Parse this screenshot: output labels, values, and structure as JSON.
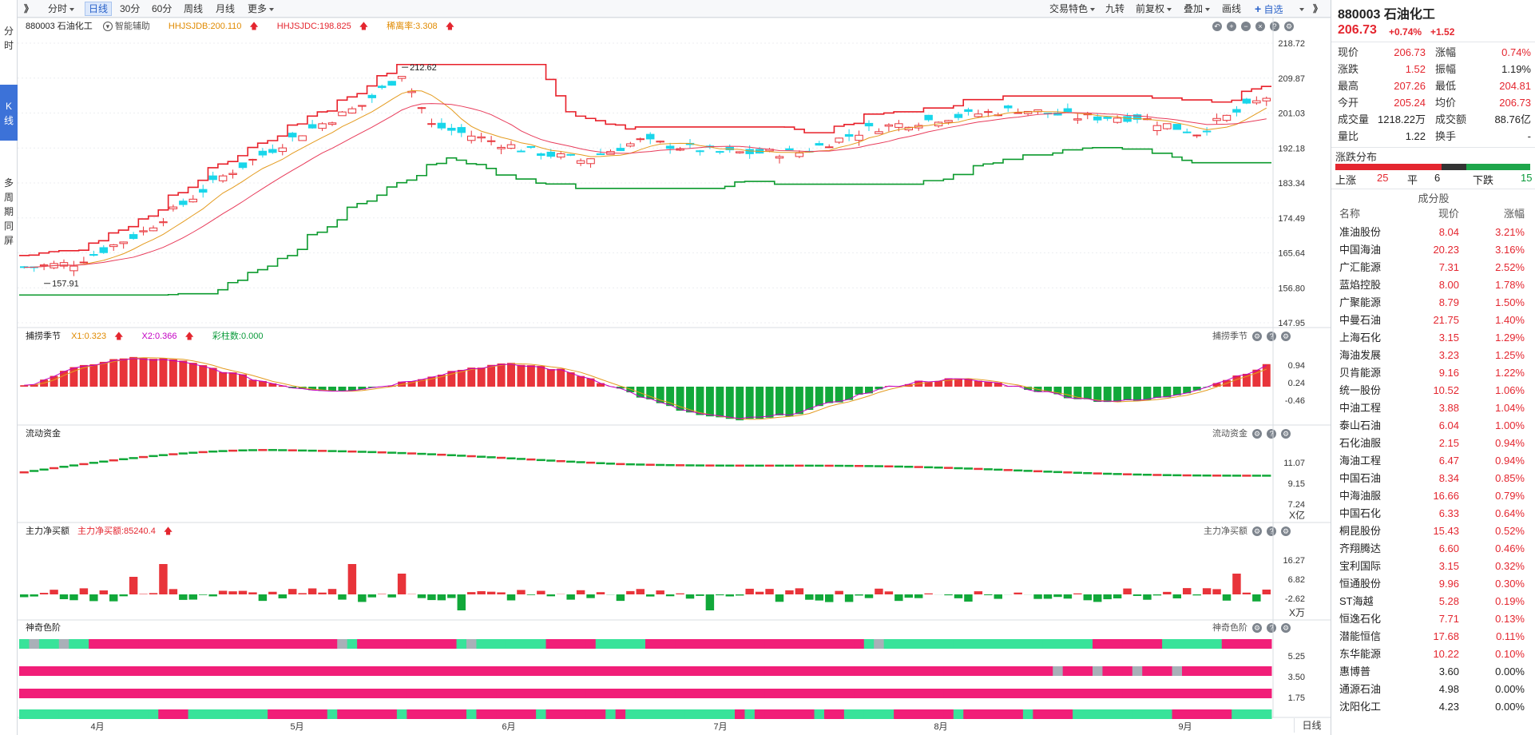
{
  "left_tabs": [
    "分时",
    "K线",
    "多周期同屏"
  ],
  "toolbar": {
    "expand": "》",
    "items": [
      "分时",
      "日线",
      "30分",
      "60分",
      "周线",
      "月线",
      "更多"
    ],
    "active": "日线",
    "right_items": [
      "交易特色",
      "九转",
      "前复权",
      "叠加",
      "画线",
      "自选"
    ],
    "collapse": "》",
    "add_icon": "plus-icon"
  },
  "main": {
    "code_name": "880003 石油化工",
    "assist": "智能辅助",
    "ind1": "HHJSJDB:200.110",
    "ind2": "HHJSJDC:198.825",
    "ind3": "稀离率:3.308",
    "high_label": "212.62",
    "low_label": "157.91",
    "y_ticks": [
      "218.72",
      "209.87",
      "201.03",
      "192.18",
      "183.34",
      "174.49",
      "165.64",
      "156.80",
      "147.95"
    ],
    "colors": {
      "up": "#e8343a",
      "down": "#19d6ea",
      "upper_band": "#e8202a",
      "lower_band": "#0b9a2d"
    }
  },
  "p2": {
    "title": "捕捞季节",
    "x1": "X1:0.323",
    "x2": "X2:0.366",
    "bar": "彩柱数:0.000",
    "right_title": "捕捞季节",
    "y_ticks": [
      "0.94",
      "0.24",
      "-0.46"
    ]
  },
  "p3": {
    "title": "流动资金",
    "right_title": "流动资金",
    "y_ticks": [
      "11.07",
      "9.15",
      "7.24"
    ],
    "unit": "X亿"
  },
  "p4": {
    "title": "主力净买额",
    "val": "主力净买额:85240.4",
    "right_title": "主力净买额",
    "y_ticks": [
      "16.27",
      "6.82",
      "-2.62"
    ],
    "unit": "X万"
  },
  "p5": {
    "title": "神奇色阶",
    "right_title": "神奇色阶",
    "y_ticks": [
      "5.25",
      "3.50",
      "1.75"
    ]
  },
  "x_labels": [
    "4月",
    "5月",
    "6月",
    "7月",
    "8月",
    "9月"
  ],
  "period_label": "日线",
  "quote": {
    "code": "880003",
    "name": "石油化工",
    "price": "206.73",
    "change_pct": "+0.74%",
    "change": "+1.52",
    "rows": [
      [
        "现价",
        "206.73",
        "涨幅",
        "0.74%"
      ],
      [
        "涨跌",
        "1.52",
        "振幅",
        "1.19%"
      ],
      [
        "最高",
        "207.26",
        "最低",
        "204.81"
      ],
      [
        "今开",
        "205.24",
        "均价",
        "206.73"
      ],
      [
        "成交量",
        "1218.22万",
        "成交额",
        "88.76亿"
      ],
      [
        "量比",
        "1.22",
        "换手",
        "-"
      ]
    ],
    "dist_title": "涨跌分布",
    "up_label": "上涨",
    "up": "25",
    "flat_label": "平",
    "flat": "6",
    "down_label": "下跌",
    "down": "15"
  },
  "constituents": {
    "title": "成分股",
    "headers": [
      "名称",
      "现价",
      "涨幅"
    ],
    "rows": [
      [
        "准油股份",
        "8.04",
        "3.21%"
      ],
      [
        "中国海油",
        "20.23",
        "3.16%"
      ],
      [
        "广汇能源",
        "7.31",
        "2.52%"
      ],
      [
        "蓝焰控股",
        "8.00",
        "1.78%"
      ],
      [
        "广聚能源",
        "8.79",
        "1.50%"
      ],
      [
        "中曼石油",
        "21.75",
        "1.40%"
      ],
      [
        "上海石化",
        "3.15",
        "1.29%"
      ],
      [
        "海油发展",
        "3.23",
        "1.25%"
      ],
      [
        "贝肯能源",
        "9.16",
        "1.22%"
      ],
      [
        "统一股份",
        "10.52",
        "1.06%"
      ],
      [
        "中油工程",
        "3.88",
        "1.04%"
      ],
      [
        "泰山石油",
        "6.04",
        "1.00%"
      ],
      [
        "石化油服",
        "2.15",
        "0.94%"
      ],
      [
        "海油工程",
        "6.47",
        "0.94%"
      ],
      [
        "中国石油",
        "8.34",
        "0.85%"
      ],
      [
        "中海油服",
        "16.66",
        "0.79%"
      ],
      [
        "中国石化",
        "6.33",
        "0.64%"
      ],
      [
        "桐昆股份",
        "15.43",
        "0.52%"
      ],
      [
        "齐翔腾达",
        "6.60",
        "0.46%"
      ],
      [
        "宝利国际",
        "3.15",
        "0.32%"
      ],
      [
        "恒通股份",
        "9.96",
        "0.30%"
      ],
      [
        "ST海越",
        "5.28",
        "0.19%"
      ],
      [
        "恒逸石化",
        "7.71",
        "0.13%"
      ],
      [
        "潜能恒信",
        "17.68",
        "0.11%"
      ],
      [
        "东华能源",
        "10.22",
        "0.10%"
      ],
      [
        "惠博普",
        "3.60",
        "0.00%"
      ],
      [
        "通源石油",
        "4.98",
        "0.00%"
      ],
      [
        "沈阳化工",
        "4.23",
        "0.00%"
      ]
    ]
  }
}
